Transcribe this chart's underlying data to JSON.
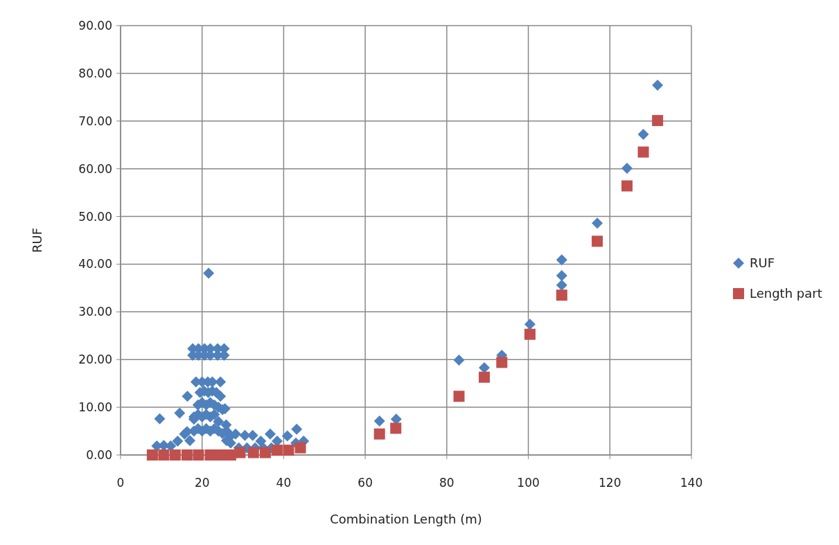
{
  "chart_data": {
    "type": "scatter",
    "xlabel": "Combination Length (m)",
    "ylabel": "RUF",
    "xlim": [
      0,
      140
    ],
    "xticks": [
      0,
      20,
      40,
      60,
      80,
      100,
      120,
      140
    ],
    "ylim": [
      0,
      90
    ],
    "yticks": [
      {
        "value": 0,
        "label": "0.00"
      },
      {
        "value": 10,
        "label": "10.00"
      },
      {
        "value": 20,
        "label": "20.00"
      },
      {
        "value": 30,
        "label": "30.00"
      },
      {
        "value": 40,
        "label": "40.00"
      },
      {
        "value": 50,
        "label": "50.00"
      },
      {
        "value": 60,
        "label": "60.00"
      },
      {
        "value": 70,
        "label": "70.00"
      },
      {
        "value": 80,
        "label": "80.00"
      },
      {
        "value": 90,
        "label": "90.00"
      }
    ],
    "grid": true,
    "legend": "right",
    "series": [
      {
        "name": "RUF",
        "color": "#4f81bd",
        "marker": "diamond",
        "x": [
          8.9,
          9.6,
          10.6,
          12.3,
          14,
          14.5,
          15.7,
          16.3,
          16.4,
          17.7,
          18,
          18.5,
          19.1,
          20,
          20.6,
          21.4,
          21.6,
          22,
          22.5,
          23.8,
          24.5,
          25.4,
          17.7,
          19.1,
          20.6,
          22,
          23.8,
          25.4,
          19.5,
          20.5,
          21.5,
          22.5,
          23.5,
          24.5,
          19,
          20,
          21,
          22,
          23,
          24,
          25,
          25.6,
          25.9,
          18,
          19,
          20,
          21,
          22,
          23,
          24,
          26,
          27,
          17,
          18,
          19,
          20,
          21,
          22,
          23,
          24,
          25,
          26,
          27,
          28.2,
          30.5,
          32.4,
          34.4,
          36.7,
          38.4,
          40.9,
          43.2,
          44.9,
          29,
          31,
          33,
          35,
          37,
          43,
          63.5,
          67.6,
          83,
          89.2,
          93.5,
          100.4,
          108.2,
          108.2,
          108.2,
          116.9,
          124.2,
          128.2,
          131.7
        ],
        "values": [
          1.9,
          7.6,
          2,
          1.9,
          2.9,
          8.8,
          4.4,
          4.9,
          12.3,
          22.3,
          7.5,
          15.3,
          22.3,
          15.3,
          22.3,
          15.3,
          38.1,
          22.3,
          15.3,
          22.3,
          15.3,
          22.3,
          20.9,
          20.9,
          20.9,
          20.9,
          20.9,
          20.9,
          13.1,
          13.4,
          13.1,
          13.4,
          13.1,
          12.3,
          10.5,
          11,
          10.5,
          11,
          10.5,
          10,
          9.5,
          9.7,
          6.3,
          8,
          8.5,
          8,
          8.5,
          8,
          8.5,
          7,
          5,
          4,
          3,
          5,
          5.5,
          5,
          5.5,
          5,
          5.5,
          5,
          4.5,
          3,
          2.5,
          4.4,
          4.1,
          4.1,
          2.9,
          4.4,
          2.9,
          4,
          5.4,
          2.9,
          1.5,
          1.5,
          1.5,
          1.5,
          1.5,
          2.5,
          7.1,
          7.5,
          19.9,
          18.3,
          20.9,
          27.4,
          40.9,
          37.6,
          35.6,
          48.6,
          60.1,
          67.2,
          77.5
        ]
      },
      {
        "name": "Length part",
        "color": "#c0504d",
        "marker": "square",
        "x": [
          7.8,
          10.6,
          13.4,
          16.3,
          19.1,
          22,
          24.3,
          27,
          29.3,
          32.6,
          35.5,
          38.4,
          41.2,
          44.1,
          63.5,
          67.5,
          83,
          89.2,
          93.5,
          100.4,
          108.2,
          116.9,
          124.2,
          128.2,
          131.7
        ],
        "values": [
          0,
          0,
          0,
          0,
          0,
          0,
          0,
          0,
          0.5,
          0.5,
          0.5,
          1,
          1,
          1.5,
          4.4,
          5.6,
          12.3,
          16.3,
          19.4,
          25.3,
          33.5,
          44.8,
          56.4,
          63.5,
          70.1
        ]
      }
    ]
  }
}
